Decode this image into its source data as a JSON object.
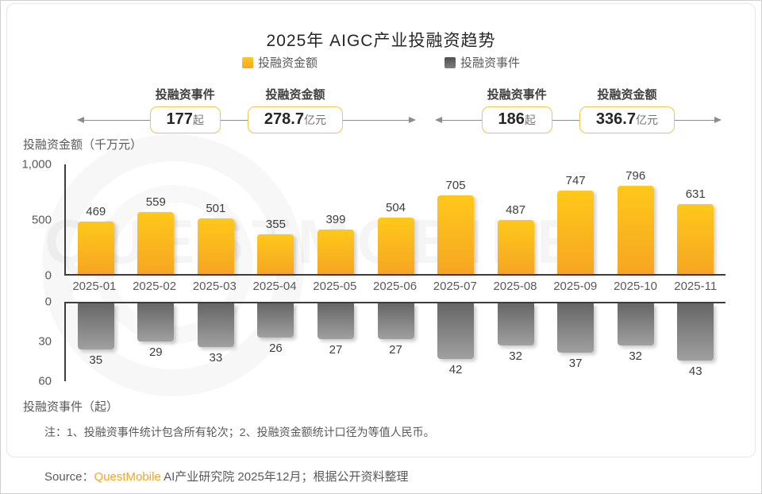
{
  "title": "2025年 AIGC产业投融资趋势",
  "legend": [
    {
      "label": "投融资金额",
      "color_top": "#ffc81a",
      "color_bottom": "#f6a622"
    },
    {
      "label": "投融资事件",
      "color_top": "#4f4f4f",
      "color_bottom": "#7d7d7d"
    }
  ],
  "callouts": {
    "h1": {
      "events_label": "投融资事件",
      "events_value": "177",
      "events_unit": "起",
      "amount_label": "投融资金额",
      "amount_value": "278.7",
      "amount_unit": "亿元"
    },
    "h2": {
      "events_label": "投融资事件",
      "events_value": "186",
      "events_unit": "起",
      "amount_label": "投融资金额",
      "amount_value": "336.7",
      "amount_unit": "亿元"
    }
  },
  "chart_data": {
    "type": "bar",
    "categories": [
      "2025-01",
      "2025-02",
      "2025-03",
      "2025-04",
      "2025-05",
      "2025-06",
      "2025-07",
      "2025-08",
      "2025-09",
      "2025-10",
      "2025-11"
    ],
    "series": [
      {
        "name": "投融资金额",
        "axis_label": "投融资金额（千万元）",
        "unit": "千万元",
        "values": [
          469,
          559,
          501,
          355,
          399,
          504,
          705,
          487,
          747,
          796,
          631
        ],
        "ylim": [
          0,
          1000
        ],
        "yticks": [
          "1,000",
          "500",
          "0"
        ],
        "color_top": "#ffc81a",
        "color_bottom": "#f6a622"
      },
      {
        "name": "投融资事件",
        "axis_label": "投融资事件（起）",
        "unit": "起",
        "values": [
          35,
          29,
          33,
          26,
          27,
          27,
          42,
          32,
          37,
          32,
          43
        ],
        "ylim": [
          0,
          60
        ],
        "yticks": [
          "0",
          "30",
          "60"
        ],
        "inverted": true,
        "color_top": "#666666",
        "color_bottom": "#a0a0a0"
      }
    ],
    "title": "2025年 AIGC产业投融资趋势",
    "legend_position": "top",
    "grid": false
  },
  "note": "注：1、投融资事件统计包含所有轮次；2、投融资金额统计口径为等值人民币。",
  "source": {
    "prefix": "Source：",
    "brand": "QuestMobile",
    "rest": " AI产业研究院 2025年12月；根据公开资料整理",
    "brand_color": "#f5a623"
  },
  "watermark": "QUESTMOBILE"
}
